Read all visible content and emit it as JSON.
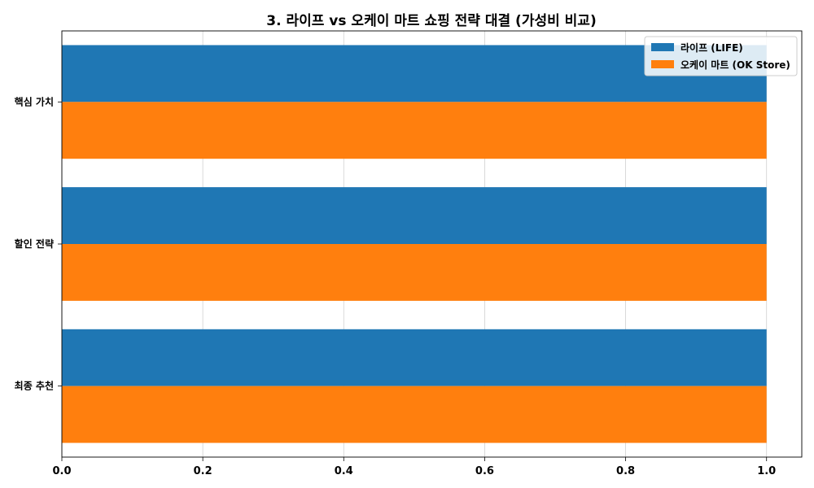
{
  "chart_data": {
    "type": "bar",
    "orientation": "horizontal",
    "title": "3. 라이프 vs 오케이 마트 쇼핑 전략 대결 (가성비 비교)",
    "xlabel": "",
    "ylabel": "",
    "categories": [
      "핵심 가치",
      "할인 전략",
      "최종 추천"
    ],
    "series": [
      {
        "name": "라이프 (LIFE)",
        "values": [
          1.0,
          1.0,
          1.0
        ],
        "color": "#1f77b4"
      },
      {
        "name": "오케이 마트 (OK Store)",
        "values": [
          1.0,
          1.0,
          1.0
        ],
        "color": "#ff7f0e"
      }
    ],
    "xlim": [
      0,
      1.05
    ],
    "xticks": [
      "0.0",
      "0.2",
      "0.4",
      "0.6",
      "0.8",
      "1.0"
    ],
    "grid": true,
    "legend_position": "top-right"
  }
}
